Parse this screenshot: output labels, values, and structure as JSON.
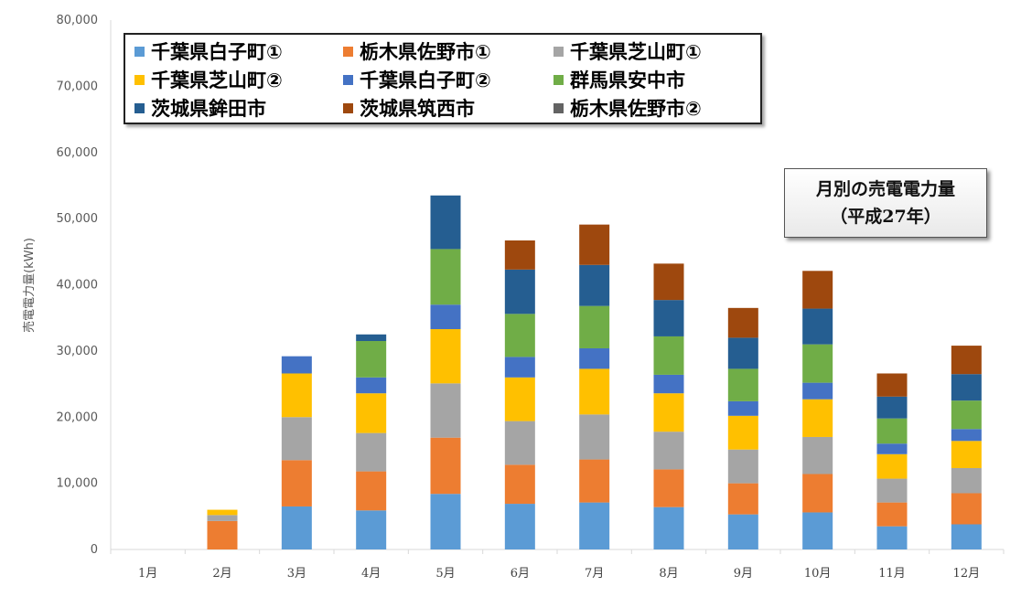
{
  "chart_data": {
    "type": "bar",
    "stacked": true,
    "title": "月別の売電電力量",
    "subtitle": "（平成27年）",
    "xlabel": "",
    "ylabel": "売電電力量(kWh)",
    "ylim": [
      0,
      80000
    ],
    "yticks": [
      "0",
      "10,000",
      "20,000",
      "30,000",
      "40,000",
      "50,000",
      "60,000",
      "70,000",
      "80,000"
    ],
    "grid": false,
    "legend_position": "top-left",
    "categories": [
      "1月",
      "2月",
      "3月",
      "4月",
      "5月",
      "6月",
      "7月",
      "8月",
      "9月",
      "10月",
      "11月",
      "12月"
    ],
    "series": [
      {
        "name": "千葉県白子町①",
        "color": "#5b9bd5",
        "values": [
          0,
          0,
          6500,
          5900,
          8400,
          6900,
          7100,
          6400,
          5300,
          5600,
          3500,
          3800
        ]
      },
      {
        "name": "栃木県佐野市①",
        "color": "#ed7d31",
        "values": [
          0,
          4300,
          7000,
          5900,
          8500,
          5900,
          6500,
          5700,
          4700,
          5800,
          3600,
          4700
        ]
      },
      {
        "name": "千葉県芝山町①",
        "color": "#a5a5a5",
        "values": [
          0,
          900,
          6500,
          5800,
          8200,
          6600,
          6800,
          5700,
          5100,
          5600,
          3600,
          3800
        ]
      },
      {
        "name": "千葉県芝山町②",
        "color": "#ffc000",
        "values": [
          0,
          800,
          6600,
          6000,
          8200,
          6600,
          6900,
          5800,
          5100,
          5700,
          3700,
          4100
        ]
      },
      {
        "name": "千葉県白子町②",
        "color": "#4472c4",
        "values": [
          0,
          0,
          2600,
          2400,
          3700,
          3100,
          3100,
          2800,
          2200,
          2500,
          1600,
          1800
        ]
      },
      {
        "name": "群馬県安中市",
        "color": "#70ad47",
        "values": [
          0,
          0,
          0,
          5500,
          8400,
          6500,
          6400,
          5800,
          4900,
          5800,
          3800,
          4300
        ]
      },
      {
        "name": "茨城県鉾田市",
        "color": "#255e91",
        "values": [
          0,
          0,
          0,
          1000,
          8100,
          6700,
          6200,
          5500,
          4700,
          5400,
          3300,
          4000
        ]
      },
      {
        "name": "茨城県筑西市",
        "color": "#9e480e",
        "values": [
          0,
          0,
          0,
          0,
          0,
          4400,
          6100,
          5500,
          4500,
          5700,
          3500,
          4300
        ]
      },
      {
        "name": "栃木県佐野市②",
        "color": "#636363",
        "values": [
          0,
          0,
          0,
          0,
          0,
          0,
          0,
          0,
          0,
          0,
          0,
          0
        ]
      }
    ]
  }
}
